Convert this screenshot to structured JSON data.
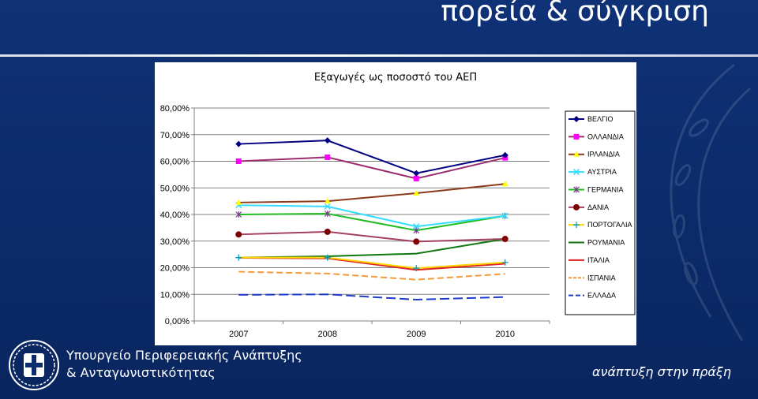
{
  "header": {
    "title": "πορεία & σύγκριση"
  },
  "footer": {
    "ministry_line1": "Υπουργείο Περιφερειακής Ανάπτυξης",
    "ministry_line2": "& Ανταγωνιστικότητας",
    "slogan": "ανάπτυξη στην πράξη"
  },
  "chart_data": {
    "type": "line",
    "title": "Εξαγωγές ως ποσοστό του ΑΕΠ",
    "categories": [
      "2007",
      "2008",
      "2009",
      "2010"
    ],
    "ylim": [
      0,
      80
    ],
    "yticks": [
      "0,00%",
      "10,00%",
      "20,00%",
      "30,00%",
      "40,00%",
      "50,00%",
      "60,00%",
      "70,00%",
      "80,00%"
    ],
    "legend_position": "right",
    "series": [
      {
        "name": "ΒΕΛΓΙΟ",
        "values": [
          66.5,
          67.8,
          55.5,
          62.3
        ],
        "color": "#000080",
        "marker": "diamond",
        "dash": ""
      },
      {
        "name": "ΟΛΛΑΝΔΙΑ",
        "values": [
          60.0,
          61.5,
          53.5,
          61.3
        ],
        "color": "#9b2d6f",
        "marker": "square",
        "dash": "",
        "markerColor": "#ff00ff"
      },
      {
        "name": "ΙΡΛΑΝΔΙΑ",
        "values": [
          44.5,
          45.0,
          48.0,
          51.5
        ],
        "color": "#8b3a1a",
        "marker": "triangle",
        "dash": "",
        "markerColor": "#ffff00"
      },
      {
        "name": "ΑΥΣΤΡΙΑ",
        "values": [
          43.5,
          43.0,
          35.5,
          39.5
        ],
        "color": "#33ddff",
        "marker": "x",
        "dash": ""
      },
      {
        "name": "ΓΕΡΜΑΝΙΑ",
        "values": [
          40.0,
          40.3,
          34.0,
          39.5
        ],
        "color": "#22bb22",
        "marker": "star",
        "dash": "",
        "markerColor": "#7a3a8a"
      },
      {
        "name": "ΔΑΝΙΑ",
        "values": [
          32.5,
          33.5,
          29.8,
          30.8
        ],
        "color": "#a3405f",
        "marker": "circle",
        "dash": "",
        "markerColor": "#800000"
      },
      {
        "name": "ΠΟΡΤΟΓΑΛΙΑ",
        "values": [
          23.8,
          23.8,
          19.8,
          22.0
        ],
        "color": "#ffd400",
        "marker": "plus",
        "dash": "",
        "markerColor": "#00a0c0"
      },
      {
        "name": "ΡΟΥΜΑΝΙΑ",
        "values": [
          23.8,
          24.3,
          25.3,
          30.8
        ],
        "color": "#117711",
        "marker": "none",
        "dash": ""
      },
      {
        "name": "ΙΤΑΛΙΑ",
        "values": [
          23.7,
          23.5,
          19.2,
          21.5
        ],
        "color": "#dd2222",
        "marker": "none",
        "dash": ""
      },
      {
        "name": "ΙΣΠΑΝΙΑ",
        "values": [
          18.5,
          17.8,
          15.5,
          17.7
        ],
        "color": "#f59a3a",
        "marker": "none",
        "dash": "8,4"
      },
      {
        "name": "ΕΛΛΑΔΑ",
        "values": [
          9.8,
          10.0,
          8.0,
          9.0
        ],
        "color": "#1f3bc8",
        "marker": "none",
        "dash": "12,5"
      }
    ]
  }
}
